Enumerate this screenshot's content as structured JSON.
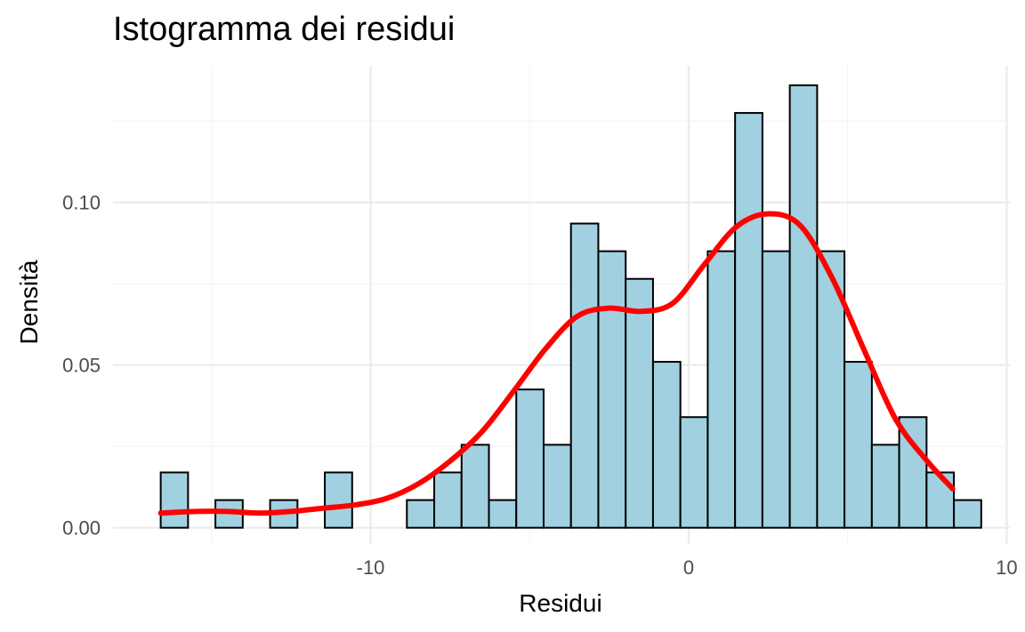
{
  "chart_data": {
    "type": "bar",
    "title": "Istogramma dei residui",
    "xlabel": "Residui",
    "ylabel": "Densità",
    "xlim": [
      -18.1,
      10.1
    ],
    "ylim": [
      -0.005,
      0.142
    ],
    "x_ticks": [
      {
        "value": -10,
        "label": "-10"
      },
      {
        "value": 0,
        "label": "0"
      },
      {
        "value": 10,
        "label": "10"
      }
    ],
    "y_ticks": [
      {
        "value": 0.0,
        "label": "0.00"
      },
      {
        "value": 0.05,
        "label": "0.05"
      },
      {
        "value": 0.1,
        "label": "0.10"
      }
    ],
    "grid": true,
    "bin_width": 0.86,
    "bins": [
      {
        "start": -16.6,
        "density": 0.017
      },
      {
        "start": -15.74,
        "density": 0.0
      },
      {
        "start": -14.88,
        "density": 0.0085
      },
      {
        "start": -14.02,
        "density": 0.0
      },
      {
        "start": -13.16,
        "density": 0.0085
      },
      {
        "start": -12.3,
        "density": 0.0
      },
      {
        "start": -11.44,
        "density": 0.017
      },
      {
        "start": -10.58,
        "density": 0.0
      },
      {
        "start": -9.72,
        "density": 0.0
      },
      {
        "start": -8.86,
        "density": 0.0085
      },
      {
        "start": -8.0,
        "density": 0.017
      },
      {
        "start": -7.14,
        "density": 0.0255
      },
      {
        "start": -6.28,
        "density": 0.0085
      },
      {
        "start": -5.42,
        "density": 0.0425
      },
      {
        "start": -4.56,
        "density": 0.0255
      },
      {
        "start": -3.7,
        "density": 0.0935
      },
      {
        "start": -2.84,
        "density": 0.085
      },
      {
        "start": -1.98,
        "density": 0.0765
      },
      {
        "start": -1.12,
        "density": 0.051
      },
      {
        "start": -0.26,
        "density": 0.034
      },
      {
        "start": 0.6,
        "density": 0.085
      },
      {
        "start": 1.46,
        "density": 0.1275
      },
      {
        "start": 2.32,
        "density": 0.085
      },
      {
        "start": 3.18,
        "density": 0.136
      },
      {
        "start": 4.04,
        "density": 0.085
      },
      {
        "start": 4.9,
        "density": 0.051
      },
      {
        "start": 5.76,
        "density": 0.0255
      },
      {
        "start": 6.62,
        "density": 0.034
      },
      {
        "start": 7.48,
        "density": 0.017
      },
      {
        "start": 8.34,
        "density": 0.0085
      }
    ],
    "density_curve": {
      "x": [
        -16.6,
        -15.5,
        -14.5,
        -13.5,
        -12.5,
        -11.5,
        -10.5,
        -9.5,
        -8.5,
        -7.5,
        -6.5,
        -5.5,
        -4.5,
        -3.5,
        -2.5,
        -1.5,
        -0.5,
        0.5,
        1.5,
        2.5,
        3.5,
        4.5,
        5.5,
        6.5,
        7.5,
        8.3
      ],
      "y": [
        0.0045,
        0.005,
        0.005,
        0.0045,
        0.005,
        0.006,
        0.007,
        0.009,
        0.0135,
        0.0205,
        0.0295,
        0.042,
        0.055,
        0.065,
        0.0675,
        0.0665,
        0.069,
        0.081,
        0.0925,
        0.0965,
        0.093,
        0.077,
        0.055,
        0.0335,
        0.0205,
        0.012
      ]
    },
    "colors": {
      "bar_fill": "#a1d0e1",
      "bar_stroke": "#000000",
      "curve": "#ff0000",
      "grid_major": "#ebebeb",
      "grid_minor": "#f2f2f2",
      "tick_text": "#4d4d4d"
    }
  }
}
